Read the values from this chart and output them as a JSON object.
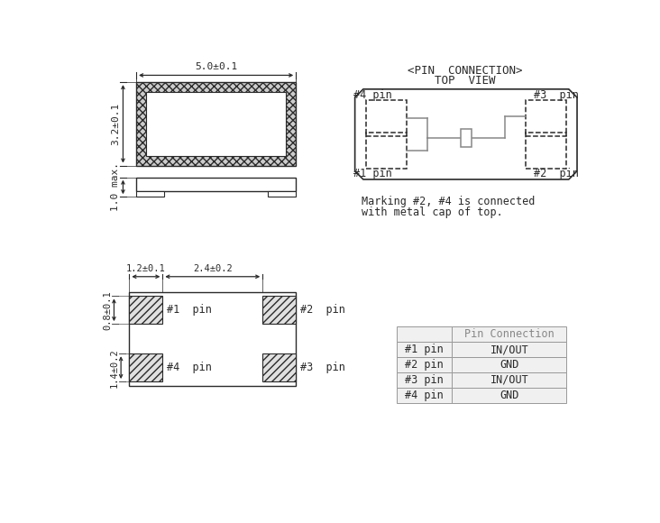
{
  "bg_color": "#ffffff",
  "line_color": "#2a2a2a",
  "dim_color": "#2a2a2a",
  "dashed_color": "#2a2a2a",
  "gray_line": "#888888",
  "pin_conn_title1": "<PIN  CONNECTION>",
  "pin_conn_title2": "TOP  VIEW",
  "marking_text1": "Marking #2, #4 is connected",
  "marking_text2": "with metal cap of top.",
  "dim_50": "5.0±0.1",
  "dim_32": "3.2±0.1",
  "dim_10": "1.0 max.",
  "dim_08": "0.8±0.1",
  "dim_14": "1.4±0.2",
  "dim_12": "1.2±0.1",
  "dim_24": "2.4±0.2",
  "table_header": [
    "",
    "Pin Connection"
  ],
  "table_rows": [
    [
      "#1 pin",
      "IN/OUT"
    ],
    [
      "#2 pin",
      "GND"
    ],
    [
      "#3 pin",
      "IN/OUT"
    ],
    [
      "#4 pin",
      "GND"
    ]
  ]
}
